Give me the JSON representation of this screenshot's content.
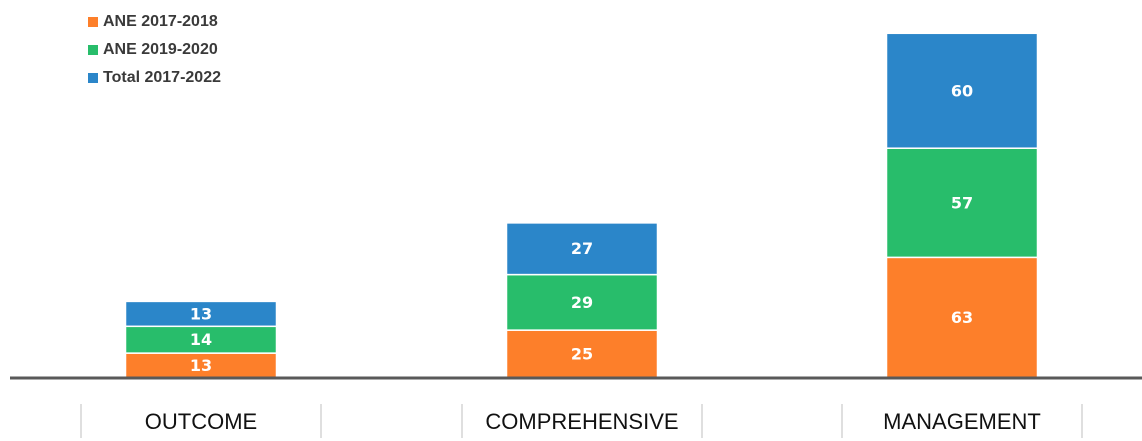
{
  "chart_data": {
    "type": "bar",
    "stacked": true,
    "categories": [
      "OUTCOME",
      "COMPREHENSIVE",
      "MANAGEMENT"
    ],
    "series": [
      {
        "name": "ANE 2017-2018",
        "color": "#fd7f2a",
        "values": [
          13,
          25,
          63
        ]
      },
      {
        "name": "ANE 2019-2020",
        "color": "#28bd6b",
        "values": [
          14,
          29,
          57
        ]
      },
      {
        "name": "Total 2017-2022",
        "color": "#2b86c9",
        "values": [
          13,
          27,
          60
        ]
      }
    ],
    "legend_position": "top-left",
    "grid": false,
    "ylim": [
      0,
      180
    ]
  }
}
